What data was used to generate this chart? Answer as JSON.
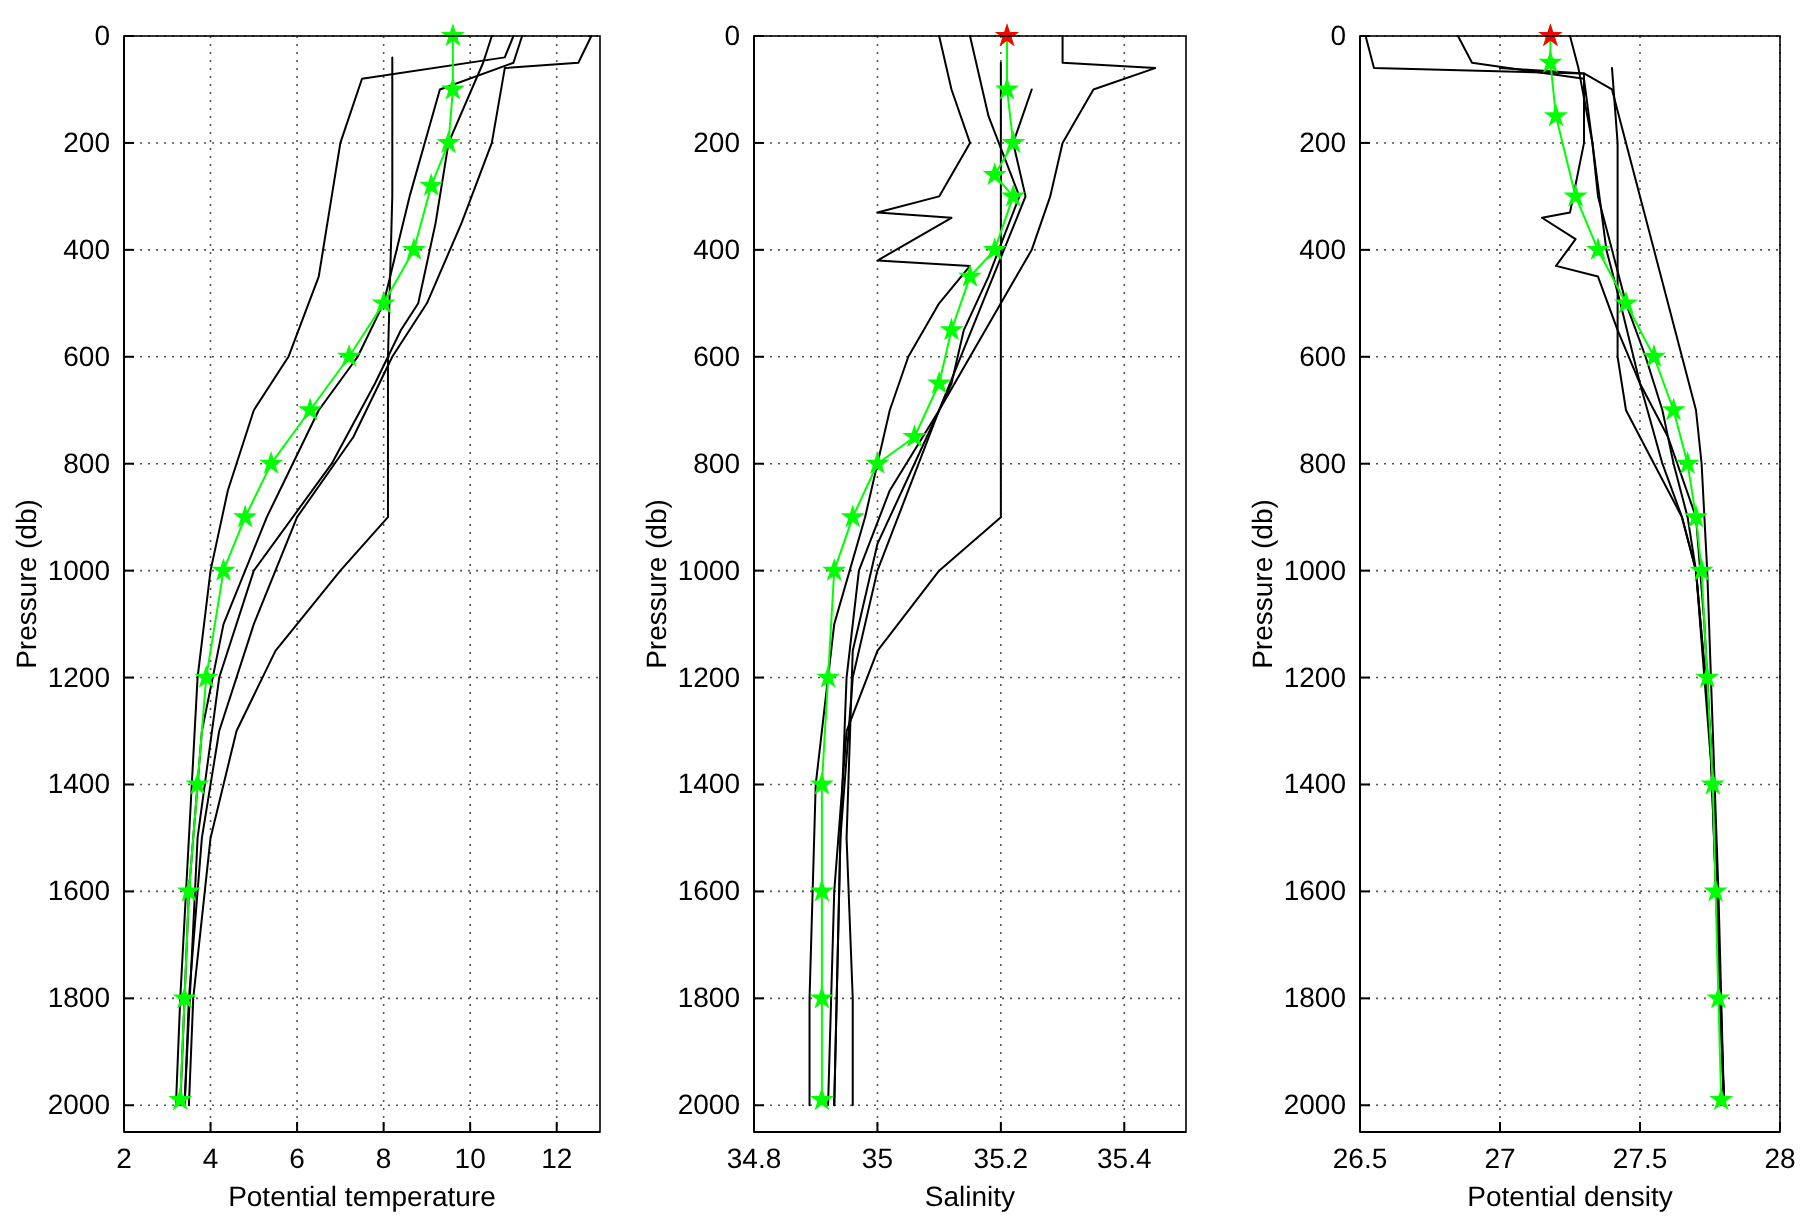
{
  "chart_data": [
    {
      "type": "line",
      "xlabel": "Potential temperature",
      "ylabel": "Pressure (db)",
      "xlim": [
        2,
        13
      ],
      "xticks": [
        2,
        4,
        6,
        8,
        10,
        12
      ],
      "ylim": [
        2050,
        0
      ],
      "yticks": [
        0,
        200,
        400,
        600,
        800,
        1000,
        1200,
        1400,
        1600,
        1800,
        2000
      ],
      "grid": true,
      "series": [
        {
          "color": "#000000",
          "marker": "none",
          "x": [
            12.8,
            12.5,
            10.8,
            10.5,
            9.8,
            9.0,
            8.2,
            7.3,
            6.0,
            5.0,
            4.2,
            3.8,
            3.5,
            3.4
          ],
          "values": [
            0,
            50,
            60,
            200,
            350,
            500,
            600,
            750,
            900,
            1100,
            1300,
            1500,
            1800,
            2000
          ]
        },
        {
          "color": "#000000",
          "marker": "none",
          "x": [
            8.2,
            8.2,
            8.1,
            8.1,
            7.0,
            5.5,
            4.6,
            4.0,
            3.6,
            3.5
          ],
          "values": [
            40,
            300,
            600,
            900,
            1000,
            1150,
            1300,
            1500,
            1800,
            2000
          ]
        },
        {
          "color": "#000000",
          "marker": "none",
          "x": [
            11,
            10.8,
            7.5,
            7.0,
            6.8,
            6.5,
            5.8,
            5.0,
            4.4,
            4.0,
            3.7,
            3.5,
            3.3,
            3.2
          ],
          "values": [
            0,
            40,
            80,
            200,
            300,
            450,
            600,
            700,
            850,
            1000,
            1200,
            1500,
            1800,
            2000
          ]
        },
        {
          "color": "#000000",
          "marker": "none",
          "x": [
            11.2,
            11,
            9.3,
            8.6,
            8.0,
            7.4,
            6.5,
            5.3,
            4.3,
            3.8,
            3.5,
            3.3
          ],
          "values": [
            0,
            50,
            100,
            300,
            500,
            600,
            700,
            900,
            1100,
            1300,
            1600,
            2000
          ]
        },
        {
          "color": "#000000",
          "marker": "none",
          "x": [
            10.5,
            10.3,
            9.5,
            9.2,
            8.8,
            8.4,
            7.8,
            6.8,
            5.0,
            4.2,
            3.7,
            3.4
          ],
          "values": [
            0,
            50,
            200,
            350,
            500,
            550,
            650,
            800,
            1000,
            1200,
            1500,
            2000
          ]
        },
        {
          "color": "#00ff00",
          "marker": "star",
          "x": [
            9.6,
            9.6,
            9.5,
            9.1,
            8.7,
            8.0,
            7.2,
            6.3,
            5.4,
            4.8,
            4.3,
            3.9,
            3.7,
            3.5,
            3.4,
            3.3
          ],
          "values": [
            0,
            100,
            200,
            280,
            400,
            500,
            600,
            700,
            800,
            900,
            1000,
            1200,
            1400,
            1600,
            1800,
            1990
          ]
        }
      ]
    },
    {
      "type": "line",
      "xlabel": "Salinity",
      "ylabel": "Pressure (db)",
      "xlim": [
        34.8,
        35.5
      ],
      "xticks": [
        34.8,
        35,
        35.2,
        35.4
      ],
      "ylim": [
        2050,
        0
      ],
      "yticks": [
        0,
        200,
        400,
        600,
        800,
        1000,
        1200,
        1400,
        1600,
        1800,
        2000
      ],
      "grid": true,
      "series": [
        {
          "color": "#000000",
          "marker": "none",
          "x": [
            35.3,
            35.3,
            35.45,
            35.35,
            35.3,
            35.28,
            35.25,
            35.2,
            35.15,
            35.1,
            35.05,
            35.0,
            34.96,
            34.94,
            34.93
          ],
          "values": [
            0,
            50,
            60,
            100,
            200,
            300,
            400,
            500,
            600,
            700,
            850,
            1000,
            1200,
            1500,
            2000
          ]
        },
        {
          "color": "#000000",
          "marker": "none",
          "x": [
            35.2,
            35.2,
            35.2,
            35.2,
            35.2,
            35.1,
            35.0,
            34.95,
            34.93,
            34.92
          ],
          "values": [
            50,
            300,
            500,
            700,
            900,
            1000,
            1150,
            1300,
            1600,
            2000
          ]
        },
        {
          "color": "#000000",
          "marker": "none",
          "x": [
            35.1,
            35.12,
            35.15,
            35.1,
            35.0,
            35.12,
            35.0,
            35.15,
            35.1,
            35.05,
            35.02,
            34.98,
            34.93,
            34.9,
            34.89,
            34.89
          ],
          "values": [
            0,
            100,
            200,
            300,
            330,
            340,
            420,
            430,
            500,
            600,
            700,
            900,
            1100,
            1400,
            1800,
            2000
          ]
        },
        {
          "color": "#000000",
          "marker": "none",
          "x": [
            35.15,
            35.18,
            35.23,
            35.18,
            35.14,
            35.12,
            35.06,
            35.0,
            34.96,
            34.95,
            34.96,
            34.96
          ],
          "values": [
            0,
            150,
            300,
            450,
            550,
            650,
            800,
            950,
            1150,
            1500,
            1800,
            2000
          ]
        },
        {
          "color": "#000000",
          "marker": "none",
          "x": [
            35.25,
            35.22,
            35.24,
            35.17,
            35.1,
            35.02,
            34.97,
            34.95,
            34.94,
            34.93
          ],
          "values": [
            100,
            200,
            300,
            500,
            700,
            850,
            1000,
            1200,
            1500,
            2000
          ]
        },
        {
          "color": "#00ff00",
          "marker": "star",
          "x": [
            35.21,
            35.21,
            35.22,
            35.19,
            35.22,
            35.19,
            35.15,
            35.12,
            35.1,
            35.06,
            35.0,
            34.96,
            34.93,
            34.92,
            34.91,
            34.91,
            34.91,
            34.91
          ],
          "values": [
            0,
            100,
            200,
            260,
            300,
            400,
            450,
            550,
            650,
            750,
            800,
            900,
            1000,
            1200,
            1400,
            1600,
            1800,
            1990
          ]
        },
        {
          "type": "scatter",
          "color": "#ff0000",
          "marker": "star",
          "x": [
            35.21
          ],
          "values": [
            0
          ]
        }
      ]
    },
    {
      "type": "line",
      "xlabel": "Potential density",
      "ylabel": "Pressure (db)",
      "xlim": [
        26.5,
        28
      ],
      "xticks": [
        26.5,
        27,
        27.5,
        28
      ],
      "ylim": [
        2050,
        0
      ],
      "yticks": [
        0,
        200,
        400,
        600,
        800,
        1000,
        1200,
        1400,
        1600,
        1800,
        2000
      ],
      "grid": true,
      "series": [
        {
          "color": "#000000",
          "marker": "none",
          "x": [
            26.52,
            26.55,
            27.3,
            27.4,
            27.45,
            27.5,
            27.55,
            27.6,
            27.65,
            27.7,
            27.72,
            27.74,
            27.76,
            27.78,
            27.8
          ],
          "values": [
            0,
            60,
            70,
            100,
            200,
            300,
            400,
            500,
            600,
            700,
            800,
            1000,
            1300,
            1600,
            2000
          ]
        },
        {
          "color": "#000000",
          "marker": "none",
          "x": [
            26.85,
            26.9,
            27.3,
            27.33,
            27.35,
            27.4,
            27.45,
            27.52,
            27.58,
            27.62,
            27.67,
            27.7,
            27.75,
            27.8
          ],
          "values": [
            0,
            50,
            80,
            200,
            300,
            400,
            500,
            600,
            700,
            800,
            900,
            1000,
            1300,
            2000
          ]
        },
        {
          "color": "#000000",
          "marker": "none",
          "x": [
            27.0,
            27.3,
            27.3,
            27.25,
            27.15,
            27.27,
            27.2,
            27.35,
            27.42,
            27.5,
            27.6,
            27.7,
            27.73,
            27.77,
            27.8
          ],
          "values": [
            60,
            70,
            200,
            330,
            340,
            380,
            430,
            450,
            550,
            650,
            750,
            900,
            1100,
            1500,
            2000
          ]
        },
        {
          "color": "#000000",
          "marker": "none",
          "x": [
            27.4,
            27.42,
            27.42,
            27.42,
            27.45,
            27.55,
            27.65,
            27.7,
            27.75,
            27.8
          ],
          "values": [
            60,
            200,
            400,
            600,
            700,
            800,
            900,
            1000,
            1300,
            2000
          ]
        },
        {
          "color": "#000000",
          "marker": "none",
          "x": [
            27.25,
            27.28,
            27.33,
            27.38,
            27.43,
            27.5,
            27.58,
            27.65,
            27.7,
            27.76,
            27.8
          ],
          "values": [
            0,
            60,
            200,
            400,
            500,
            650,
            800,
            900,
            1000,
            1400,
            2000
          ]
        },
        {
          "color": "#00ff00",
          "marker": "star",
          "x": [
            27.18,
            27.18,
            27.2,
            27.27,
            27.35,
            27.45,
            27.55,
            27.62,
            27.67,
            27.7,
            27.72,
            27.74,
            27.76,
            27.77,
            27.78,
            27.79
          ],
          "values": [
            0,
            50,
            150,
            300,
            400,
            500,
            600,
            700,
            800,
            900,
            1000,
            1200,
            1400,
            1600,
            1800,
            1990
          ]
        },
        {
          "type": "scatter",
          "color": "#ff0000",
          "marker": "star",
          "x": [
            27.18
          ],
          "values": [
            0
          ]
        }
      ]
    }
  ]
}
